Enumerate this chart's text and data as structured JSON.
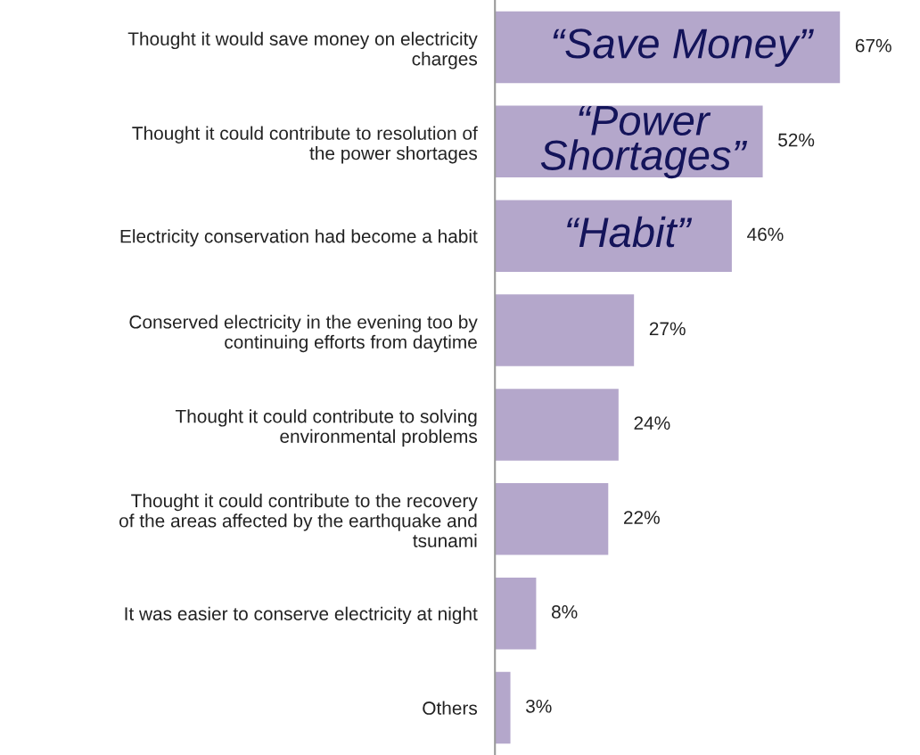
{
  "chart_data": {
    "type": "bar",
    "orientation": "horizontal",
    "data_labels": true,
    "grid": false,
    "tick_labels": "y",
    "color": "#b4a7cb",
    "categories": [
      "Thought it would save money on electricity\ncharges",
      "Thought it could contribute to resolution of\nthe power shortages",
      "Electricity conservation had become a habit",
      "Conserved electricity in the evening too by\ncontinuing efforts from daytime",
      "Thought it could contribute to solving\nenvironmental problems",
      "Thought it could contribute to the recovery\nof the areas affected by the earthquake and\ntsunami",
      "It was easier to conserve electricity at night",
      "Others"
    ],
    "values": [
      67,
      52,
      46,
      27,
      24,
      22,
      8,
      3
    ],
    "value_labels": [
      "67%",
      "52%",
      "46%",
      "27%",
      "24%",
      "22%",
      "8%",
      "3%"
    ],
    "annotations": [
      "“Save Money”",
      "“Power\nShortages”",
      "“Habit”"
    ]
  }
}
